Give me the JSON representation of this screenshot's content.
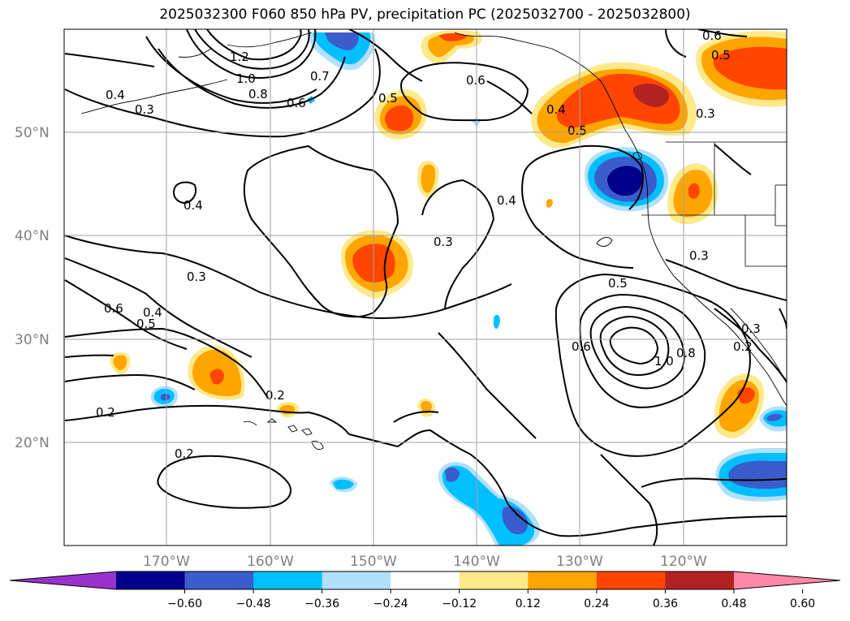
{
  "title": "2025032300 F060 850 hPa PV, precipitation PC (2025032700 - 2025032800)",
  "lat_labels": [
    "50°N",
    "40°N",
    "30°N",
    "20°N"
  ],
  "lon_labels": [
    "170°W",
    "160°W",
    "150°W",
    "140°W",
    "130°W",
    "120°W"
  ],
  "contour_labels": [
    "1.2",
    "1.0",
    "0.8",
    "0.6",
    "0.7",
    "0.4",
    "0.3",
    "0.5",
    "0.6",
    "0.5",
    "0.6",
    "0.4",
    "0.5",
    "0.4",
    "0.4",
    "0.3",
    "0.3",
    "0.3",
    "0.6",
    "0.4",
    "0.5",
    "0.5",
    "0.6",
    "1.0",
    "0.8",
    "0.2",
    "0.2",
    "0.2",
    "0.2",
    "0.3",
    "0.3"
  ],
  "colorbar": {
    "ticks": [
      "−0.60",
      "−0.48",
      "−0.36",
      "−0.24",
      "−0.12",
      "0.12",
      "0.24",
      "0.36",
      "0.48",
      "0.60"
    ],
    "colors": [
      "#9932cc",
      "#00008b",
      "#3a5ccc",
      "#00bfff",
      "#b0e0fa",
      "#ffffff",
      "#ffe98a",
      "#ffa500",
      "#ff4500",
      "#b22222",
      "#ff88aa"
    ]
  }
}
